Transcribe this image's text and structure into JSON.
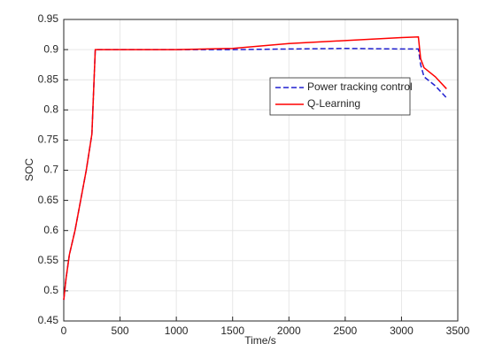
{
  "chart_data": {
    "type": "line",
    "x_label": "Time/s",
    "y_label": "SOC",
    "x": [
      0,
      20,
      50,
      100,
      150,
      200,
      250,
      280,
      300,
      500,
      1000,
      1500,
      2000,
      2500,
      3000,
      3150,
      3170,
      3200,
      3300,
      3400
    ],
    "series": [
      {
        "name": "Power tracking control",
        "color": "#2020d0",
        "dash": true,
        "values": [
          0.485,
          0.52,
          0.56,
          0.6,
          0.65,
          0.7,
          0.76,
          0.9,
          0.9,
          0.9,
          0.9,
          0.9,
          0.901,
          0.902,
          0.901,
          0.901,
          0.875,
          0.855,
          0.84,
          0.82
        ]
      },
      {
        "name": "Q-Learning",
        "color": "#ff0000",
        "dash": false,
        "values": [
          0.485,
          0.52,
          0.56,
          0.6,
          0.65,
          0.7,
          0.76,
          0.9,
          0.9,
          0.9,
          0.9,
          0.902,
          0.91,
          0.915,
          0.92,
          0.921,
          0.885,
          0.87,
          0.855,
          0.835
        ]
      }
    ],
    "xlim": [
      0,
      3500
    ],
    "xticks": [
      0,
      500,
      1000,
      1500,
      2000,
      2500,
      3000,
      3500
    ],
    "ylim": [
      0.45,
      0.95
    ],
    "yticks": [
      0.45,
      0.5,
      0.55,
      0.6,
      0.65,
      0.7,
      0.75,
      0.8,
      0.85,
      0.9,
      0.95
    ],
    "grid": true,
    "legend": "upper right"
  }
}
